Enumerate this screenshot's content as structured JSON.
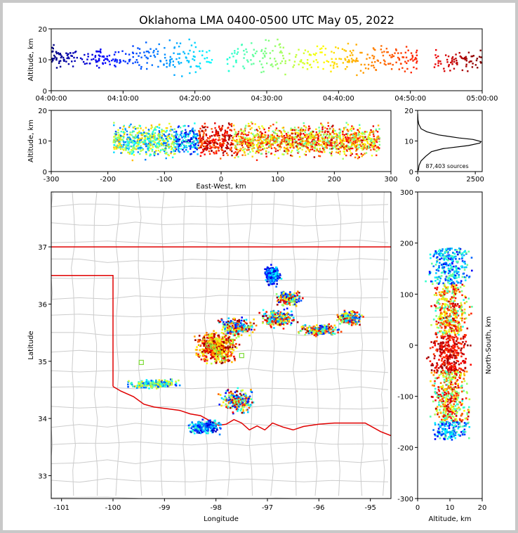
{
  "chart_data": [
    {
      "panel": "time-altitude",
      "type": "scatter",
      "title": "Oklahoma LMA 0400-0500 UTC May 05, 2022",
      "ylabel": "Altitude, km",
      "xlim": [
        "04:00:00",
        "05:00:00"
      ],
      "ylim": [
        0,
        20
      ],
      "xticks": [
        "04:00:00",
        "04:10:00",
        "04:20:00",
        "04:30:00",
        "04:40:00",
        "04:50:00",
        "05:00:00"
      ],
      "yticks": [
        0,
        10,
        20
      ],
      "colormap": "jet (time)",
      "clusters": [
        {
          "t_start": "04:00:00",
          "t_end": "04:01:00",
          "alt_low": 6,
          "alt_high": 16
        },
        {
          "t_start": "04:01:00",
          "t_end": "04:06:00",
          "alt_low": 7,
          "alt_high": 14
        },
        {
          "t_start": "04:06:00",
          "t_end": "04:07:00",
          "alt_low": 4,
          "alt_high": 17
        },
        {
          "t_start": "04:07:00",
          "t_end": "04:11:00",
          "alt_low": 7,
          "alt_high": 14
        },
        {
          "t_start": "04:11:00",
          "t_end": "04:22:30",
          "alt_low": 3,
          "alt_high": 18
        },
        {
          "t_start": "04:24:30",
          "t_end": "04:49:30",
          "alt_low": 3,
          "alt_high": 18
        },
        {
          "t_start": "04:49:30",
          "t_end": "04:51:00",
          "alt_low": 5,
          "alt_high": 15
        },
        {
          "t_start": "04:53:00",
          "t_end": "05:00:00",
          "alt_low": 5,
          "alt_high": 14
        }
      ]
    },
    {
      "panel": "east-west-altitude",
      "type": "scatter",
      "xlabel": "East-West, km",
      "ylabel": "Altitude, km",
      "xlim": [
        -300,
        300
      ],
      "ylim": [
        0,
        20
      ],
      "xticks": [
        -300,
        -200,
        -100,
        0,
        100,
        200,
        300
      ],
      "yticks": [
        0,
        10,
        20
      ],
      "colormap": "jet (time)"
    },
    {
      "panel": "altitude-histogram",
      "type": "line",
      "annotation": "87,403 sources",
      "xlim": [
        0,
        2800
      ],
      "ylim": [
        0,
        20
      ],
      "xticks": [
        0,
        2500
      ],
      "yticks": [
        0,
        10,
        20
      ],
      "profile": [
        {
          "alt": 0.3,
          "count": 30
        },
        {
          "alt": 2.0,
          "count": 60
        },
        {
          "alt": 3.5,
          "count": 150
        },
        {
          "alt": 5.0,
          "count": 350
        },
        {
          "alt": 6.5,
          "count": 600
        },
        {
          "alt": 7.5,
          "count": 1100
        },
        {
          "alt": 8.5,
          "count": 2200
        },
        {
          "alt": 9.3,
          "count": 2700
        },
        {
          "alt": 9.8,
          "count": 2750
        },
        {
          "alt": 10.5,
          "count": 2400
        },
        {
          "alt": 11.0,
          "count": 1800
        },
        {
          "alt": 12.0,
          "count": 900
        },
        {
          "alt": 13.0,
          "count": 400
        },
        {
          "alt": 14.0,
          "count": 150
        },
        {
          "alt": 15.5,
          "count": 50
        },
        {
          "alt": 17.0,
          "count": 15
        },
        {
          "alt": 19.0,
          "count": 4
        }
      ]
    },
    {
      "panel": "plan-view-map",
      "type": "scatter",
      "xlabel": "Longitude",
      "ylabel": "Latitude",
      "xlim": [
        -101.2,
        -94.6
      ],
      "ylim": [
        32.6,
        37.96
      ],
      "xticks": [
        -101,
        -100,
        -99,
        -98,
        -97,
        -96,
        -95
      ],
      "yticks": [
        33,
        34,
        35,
        36,
        37
      ],
      "colormap": "jet (time)",
      "storm_clusters": [
        {
          "lon": -98.0,
          "lat": 35.25,
          "spread_lon": 0.5,
          "spread_lat": 0.35
        },
        {
          "lon": -97.6,
          "lat": 35.6,
          "spread_lon": 0.5,
          "spread_lat": 0.2
        },
        {
          "lon": -96.8,
          "lat": 35.75,
          "spread_lon": 0.4,
          "spread_lat": 0.2
        },
        {
          "lon": -96.6,
          "lat": 36.1,
          "spread_lon": 0.3,
          "spread_lat": 0.15
        },
        {
          "lon": -96.9,
          "lat": 36.5,
          "spread_lon": 0.2,
          "spread_lat": 0.2
        },
        {
          "lon": -96.0,
          "lat": 35.55,
          "spread_lon": 0.5,
          "spread_lat": 0.12
        },
        {
          "lon": -95.4,
          "lat": 35.75,
          "spread_lon": 0.3,
          "spread_lat": 0.15
        },
        {
          "lon": -99.2,
          "lat": 34.6,
          "spread_lon": 0.6,
          "spread_lat": 0.1
        },
        {
          "lon": -97.6,
          "lat": 34.3,
          "spread_lon": 0.4,
          "spread_lat": 0.25
        },
        {
          "lon": -98.2,
          "lat": 33.85,
          "spread_lon": 0.4,
          "spread_lat": 0.15
        }
      ]
    },
    {
      "panel": "altitude-north-south",
      "type": "scatter",
      "xlabel": "Altitude, km",
      "ylabel": "North-South, km",
      "xlim": [
        0,
        20
      ],
      "ylim": [
        -300,
        300
      ],
      "xticks": [
        0,
        10,
        20
      ],
      "yticks": [
        -300,
        -200,
        -100,
        0,
        100,
        200,
        300
      ],
      "colormap": "jet (time)"
    }
  ]
}
